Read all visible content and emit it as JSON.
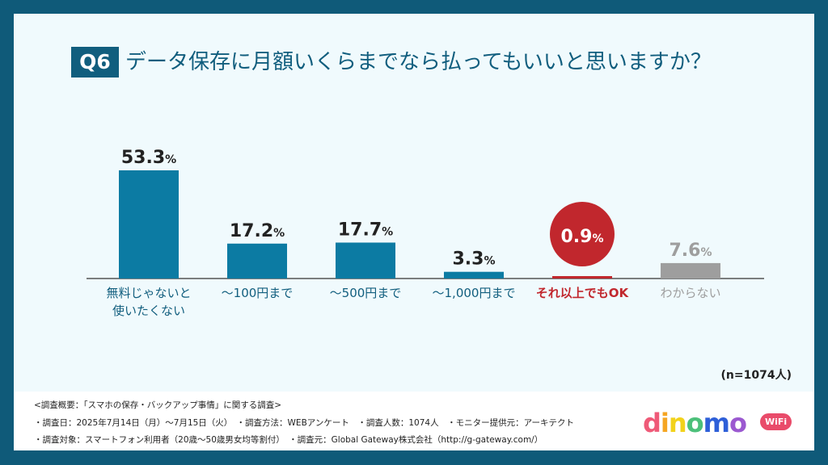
{
  "header": {
    "q_label": "Q6",
    "title": "データ保存に月額いくらまでなら払ってもいいと思いますか？"
  },
  "chart_data": {
    "type": "bar",
    "title": "データ保存に月額いくらまでなら払ってもいいと思いますか？",
    "categories": [
      "無料じゃないと使いたくない",
      "〜100円まで",
      "〜500円まで",
      "〜1,000円まで",
      "それ以上でもOK",
      "わからない"
    ],
    "values": [
      53.3,
      17.2,
      17.7,
      3.3,
      0.9,
      7.6
    ],
    "unit": "%",
    "ylim": [
      0,
      60
    ],
    "colors": [
      "#0c7ba3",
      "#0c7ba3",
      "#0c7ba3",
      "#0c7ba3",
      "#c1272d",
      "#9e9e9e"
    ],
    "label_colors": [
      "#222222",
      "#222222",
      "#222222",
      "#222222",
      "#ffffff",
      "#9e9e9e"
    ],
    "category_colors": [
      "#115e7e",
      "#115e7e",
      "#115e7e",
      "#115e7e",
      "#c1272d",
      "#9e9e9e"
    ],
    "highlight": "それ以上でもOK",
    "grid": false,
    "legend": "none"
  },
  "sample": "(n=1074人)",
  "footer": {
    "line1": "<調査概要：「スマホの保存・バックアップ事情」に関する調査>",
    "line2": "・調査日：2025年7月14日（月）〜7月15日（火）　・調査方法：WEBアンケート　・調査人数：1074人　・モニター提供元：アーキテクト",
    "line3": "・調査対象：スマートフォン利用者（20歳〜50歳男女均等割付）　・調査元：Global Gateway株式会社（http://g-gateway.com/）"
  },
  "logo": {
    "text": "dinomo",
    "badge": "WiFi",
    "letter_colors": [
      "#ef5a78",
      "#f5a623",
      "#f2d21b",
      "#4cc07a",
      "#2e5fd8",
      "#9b59d0"
    ]
  }
}
